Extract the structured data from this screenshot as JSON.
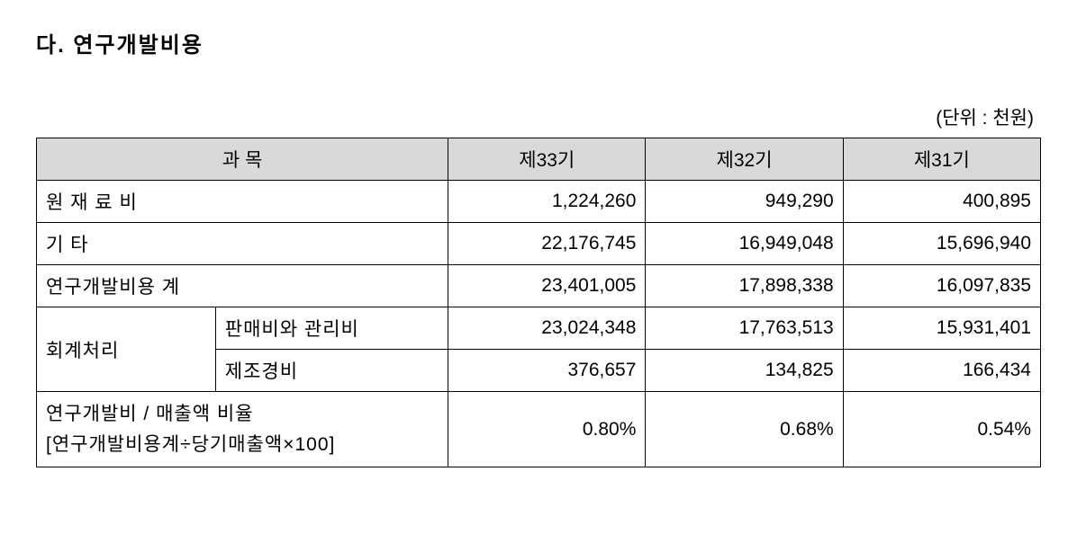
{
  "heading": "다. 연구개발비용",
  "unit_label": "(단위 : 천원)",
  "table": {
    "header": {
      "category": "과 목",
      "period33": "제33기",
      "period32": "제32기",
      "period31": "제31기"
    },
    "rows": {
      "raw_material": {
        "label": "원 재 료 비",
        "p33": "1,224,260",
        "p32": "949,290",
        "p31": "400,895"
      },
      "other": {
        "label": "기 타",
        "p33": "22,176,745",
        "p32": "16,949,048",
        "p31": "15,696,940"
      },
      "total": {
        "label": "연구개발비용 계",
        "p33": "23,401,005",
        "p32": "17,898,338",
        "p31": "16,097,835"
      },
      "accounting": {
        "group_label": "회계처리",
        "sga": {
          "label": "판매비와 관리비",
          "p33": "23,024,348",
          "p32": "17,763,513",
          "p31": "15,931,401"
        },
        "mfg": {
          "label": "제조경비",
          "p33": "376,657",
          "p32": "134,825",
          "p31": "166,434"
        }
      },
      "ratio": {
        "label_line1": "연구개발비 / 매출액 비율",
        "label_line2": "[연구개발비용계÷당기매출액×100]",
        "p33": "0.80%",
        "p32": "0.68%",
        "p31": "0.54%"
      }
    }
  },
  "styles": {
    "background_color": "#ffffff",
    "header_bg_color": "#d9d9d9",
    "border_color": "#000000",
    "text_color": "#000000",
    "title_fontsize": 24,
    "cell_fontsize": 21
  }
}
